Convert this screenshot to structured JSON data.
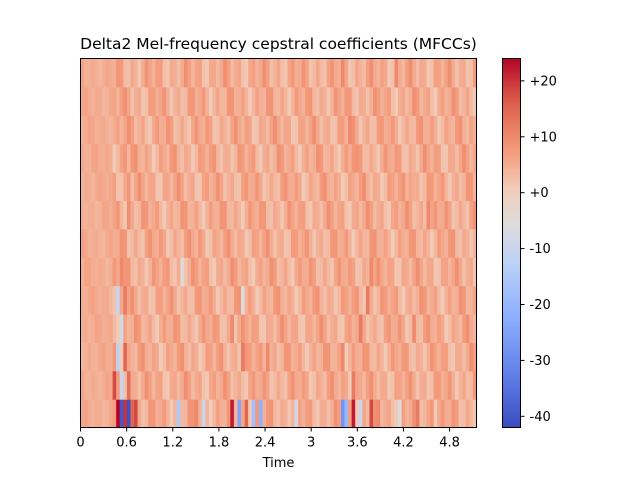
{
  "chart_data": {
    "type": "heatmap",
    "title": "Delta2 Mel-frequency cepstral coefficients (MFCCs)",
    "xlabel": "Time",
    "ylabel": "",
    "x_ticks": [
      "0",
      "0.6",
      "1.2",
      "1.8",
      "2.4",
      "3",
      "3.6",
      "4.2",
      "4.8"
    ],
    "x_tick_values": [
      0,
      0.6,
      1.2,
      1.8,
      2.4,
      3.0,
      3.6,
      4.2,
      4.8
    ],
    "xlim": [
      0,
      5.15
    ],
    "n_coefficients": 13,
    "n_frames": 111,
    "colormap": "coolwarm",
    "clim": [
      -42,
      24
    ],
    "colorbar_ticks": [
      "+20",
      "+10",
      "+0",
      "-10",
      "-20",
      "-30",
      "-40"
    ],
    "colorbar_tick_values": [
      20,
      10,
      0,
      -10,
      -20,
      -30,
      -40
    ],
    "events": [
      {
        "row": 0,
        "time": 0.46,
        "value": 24
      },
      {
        "row": 0,
        "time": 0.5,
        "value": -40
      },
      {
        "row": 0,
        "time": 0.55,
        "value": 20
      },
      {
        "row": 0,
        "time": 0.6,
        "value": -41
      },
      {
        "row": 0,
        "time": 0.65,
        "value": 15
      },
      {
        "row": 0,
        "time": 0.72,
        "value": 18
      },
      {
        "row": 0,
        "time": 1.28,
        "value": -15
      },
      {
        "row": 0,
        "time": 1.5,
        "value": 10
      },
      {
        "row": 0,
        "time": 1.6,
        "value": -10
      },
      {
        "row": 0,
        "time": 1.98,
        "value": 22
      },
      {
        "row": 0,
        "time": 2.07,
        "value": -25
      },
      {
        "row": 0,
        "time": 2.16,
        "value": 15
      },
      {
        "row": 0,
        "time": 2.24,
        "value": -18
      },
      {
        "row": 0,
        "time": 2.36,
        "value": -22
      },
      {
        "row": 0,
        "time": 2.8,
        "value": -8
      },
      {
        "row": 0,
        "time": 3.4,
        "value": -28
      },
      {
        "row": 0,
        "time": 3.48,
        "value": -20
      },
      {
        "row": 0,
        "time": 3.57,
        "value": 22
      },
      {
        "row": 0,
        "time": 3.65,
        "value": -10
      },
      {
        "row": 0,
        "time": 3.78,
        "value": 18
      },
      {
        "row": 0,
        "time": 3.9,
        "value": 10
      },
      {
        "row": 0,
        "time": 4.15,
        "value": -6
      },
      {
        "row": 0,
        "time": 4.4,
        "value": 12
      },
      {
        "row": 0,
        "time": 4.6,
        "value": 8
      },
      {
        "row": 1,
        "time": 0.42,
        "value": 18
      },
      {
        "row": 1,
        "time": 0.5,
        "value": -10
      },
      {
        "row": 1,
        "time": 0.6,
        "value": 14
      },
      {
        "row": 1,
        "time": 3.55,
        "value": 12
      },
      {
        "row": 2,
        "time": 0.48,
        "value": -12
      },
      {
        "row": 2,
        "time": 0.58,
        "value": 15
      },
      {
        "row": 2,
        "time": 2.1,
        "value": 12
      },
      {
        "row": 2,
        "time": 2.45,
        "value": 10
      },
      {
        "row": 2,
        "time": 3.4,
        "value": 10
      },
      {
        "row": 3,
        "time": 0.5,
        "value": -8
      },
      {
        "row": 3,
        "time": 1.98,
        "value": 10
      },
      {
        "row": 3,
        "time": 3.65,
        "value": 12
      },
      {
        "row": 3,
        "time": 4.35,
        "value": 10
      },
      {
        "row": 4,
        "time": 0.48,
        "value": -10
      },
      {
        "row": 4,
        "time": 0.58,
        "value": 12
      },
      {
        "row": 4,
        "time": 2.1,
        "value": -6
      },
      {
        "row": 4,
        "time": 3.75,
        "value": 12
      },
      {
        "row": 5,
        "time": 0.52,
        "value": 10
      },
      {
        "row": 5,
        "time": 1.3,
        "value": -5
      },
      {
        "row": 5,
        "time": 3.8,
        "value": 10
      },
      {
        "row": 6,
        "time": 0.55,
        "value": 8
      },
      {
        "row": 6,
        "time": 1.55,
        "value": 8
      },
      {
        "row": 6,
        "time": 4.3,
        "value": 8
      },
      {
        "row": 7,
        "time": 0.6,
        "value": 9
      },
      {
        "row": 7,
        "time": 4.55,
        "value": 10
      },
      {
        "row": 8,
        "time": 0.6,
        "value": 8
      },
      {
        "row": 8,
        "time": 4.3,
        "value": 6
      },
      {
        "row": 9,
        "time": 0.55,
        "value": 8
      },
      {
        "row": 9,
        "time": 3.55,
        "value": 8
      },
      {
        "row": 10,
        "time": 0.58,
        "value": 6
      },
      {
        "row": 10,
        "time": 3.5,
        "value": 10
      },
      {
        "row": 10,
        "time": 4.05,
        "value": 8
      },
      {
        "row": 11,
        "time": 0.6,
        "value": 6
      },
      {
        "row": 11,
        "time": 3.45,
        "value": 8
      },
      {
        "row": 12,
        "time": 3.4,
        "value": 10
      },
      {
        "row": 12,
        "time": 4.1,
        "value": 10
      }
    ]
  }
}
